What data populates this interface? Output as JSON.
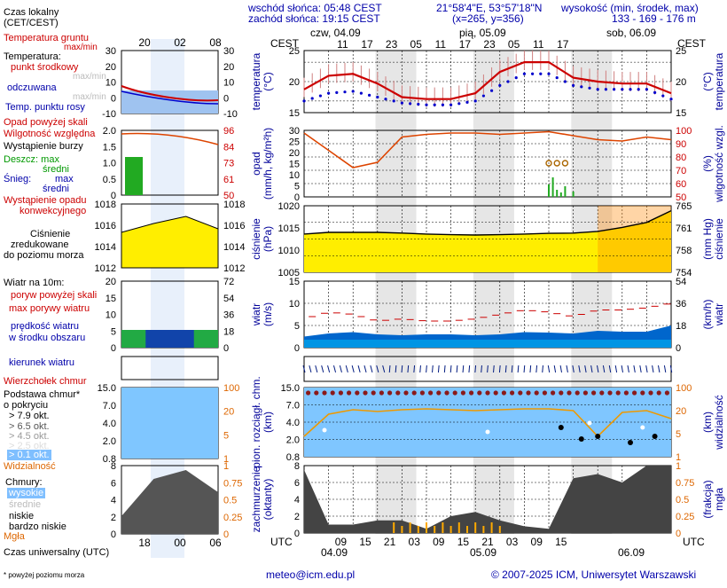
{
  "header": {
    "sunrise": "wschód słońca: 05:48 CEST",
    "sunset": "zachód słońca: 19:15 CEST",
    "coords": "21°58'4\"E, 53°57'18\"N",
    "grid": "(x=265, y=356)",
    "elev_title": "wysokość (min, środek, max)",
    "elev_values": "133 - 169 - 176 m"
  },
  "legend": {
    "time_local": "Czas lokalny",
    "time_local2": "(CET/CEST)",
    "ground_temp": "Temperatura gruntu",
    "ground_temp_sub": "max/min",
    "temperature": "Temperatura:",
    "temp_mid": "punkt środkowy",
    "temp_range": "max/min",
    "felt": "odczuwana",
    "felt_range": "max/min",
    "dew": "Temp. punktu rosy",
    "precip_above": "Opad powyżej skali",
    "humidity": "Wilgotność względna",
    "storm": "Wystąpienie burzy",
    "rain": "Deszcz: max",
    "rain_mid": "średni",
    "snow": "Śnieg:",
    "snow_max": "max",
    "snow_mid": "średni",
    "conv": "Wystąpienie opadu",
    "conv2": "konwekcyjnego",
    "pressure1": "Ciśnienie",
    "pressure2": "zredukowane",
    "pressure3": "do poziomu morza",
    "wind": "Wiatr na 10m:",
    "gust_above": "poryw powyżej skali",
    "gust_max": "max porywy wiatru",
    "wind_speed": "prędkość wiatru",
    "wind_area": "w środku obszaru",
    "wind_dir": "kierunek wiatru",
    "cloud_top": "Wierzchołek chmur",
    "cloud_base": "Podstawa chmur*",
    "cloud_base2": "o pokryciu",
    "okt1": "> 7.9 okt.",
    "okt2": "> 6.5 okt.",
    "okt3": "> 4.5 okt.",
    "okt4": "> 2.5 okt.",
    "okt5": "> 0.1 okt.",
    "visibility": "Widzialność",
    "clouds": "Chmury:",
    "high": "wysokie",
    "mid": "średnie",
    "low": "niskie",
    "very_low": "bardzo niskie",
    "fog": "Mgła",
    "utc": "Czas uniwersalny (UTC)",
    "footnote": "* powyżej poziomu morza"
  },
  "mini_axis": {
    "top_ticks": [
      "20",
      "02",
      "08"
    ],
    "bottom_ticks": [
      "18",
      "00",
      "06"
    ],
    "temp_left": [
      "30",
      "20",
      "10",
      "0",
      "-10"
    ],
    "temp_right": [
      "30",
      "20",
      "10",
      "0",
      "-10"
    ],
    "precip_left": [
      "2.0",
      "1.5",
      "1.0",
      "0.5",
      "0"
    ],
    "precip_right": [
      "96",
      "84",
      "73",
      "61",
      "50"
    ],
    "press_left": [
      "1018",
      "1016",
      "1014",
      "1012"
    ],
    "press_right": [
      "1018",
      "1016",
      "1014",
      "1012"
    ],
    "wind_left": [
      "20",
      "15",
      "10",
      "5",
      "0"
    ],
    "wind_right": [
      "72",
      "54",
      "36",
      "18",
      "0"
    ],
    "cloud_left": [
      "15.0",
      "7.0",
      "4.0",
      "2.0",
      "0.8"
    ],
    "cloud_right": [
      "100",
      "20",
      "5",
      "1"
    ],
    "cover_left": [
      "8",
      "6",
      "4",
      "2",
      "0"
    ],
    "cover_right": [
      "1",
      "0.75",
      "0.5",
      "0.25",
      "0"
    ]
  },
  "main_axis": {
    "cest": "CEST",
    "utc": "UTC",
    "days_top": [
      "czw, 04.09",
      "pią, 05.09",
      "sob, 06.09"
    ],
    "hours_top": [
      "11",
      "17",
      "23",
      "05",
      "11",
      "17",
      "23",
      "05",
      "11",
      "17"
    ],
    "hours_bottom": [
      "09",
      "15",
      "21",
      "03",
      "09",
      "15",
      "21",
      "03",
      "09",
      "15"
    ],
    "days_bottom": [
      "04.09",
      "05.09",
      "06.09"
    ],
    "temp_left": [
      "25",
      "20",
      "15"
    ],
    "temp_right": [
      "25",
      "20",
      "15"
    ],
    "precip_left": [
      "30",
      "25",
      "20",
      "15",
      "10",
      "5",
      "0"
    ],
    "precip_right": [
      "100",
      "90",
      "80",
      "70",
      "60",
      "50"
    ],
    "press_left": [
      "1020",
      "1015",
      "1010",
      "1005"
    ],
    "press_right": [
      "765",
      "761",
      "758",
      "754"
    ],
    "wind_left": [
      "15",
      "10",
      "5",
      "0"
    ],
    "wind_right": [
      "54",
      "36",
      "18",
      "0"
    ],
    "cloud_left": [
      "15.0",
      "7.0",
      "4.0",
      "2.0",
      "0.8"
    ],
    "cloud_right": [
      "100",
      "20",
      "5",
      "1"
    ],
    "cover_left": [
      "8",
      "6",
      "4",
      "2",
      "0"
    ],
    "cover_right": [
      "1",
      "0.75",
      "0.5",
      "0.25",
      "0"
    ]
  },
  "titles": {
    "temp_l1": "temperatura",
    "temp_l2": "(°C)",
    "temp_r1": "(°C)",
    "temp_r2": "temperatura",
    "precip_l1": "opad",
    "precip_l2": "(mm/h, kg/m²h)",
    "precip_r1": "(%)",
    "precip_r2": "wilgotność wzgl.",
    "press_l1": "ciśnienie",
    "press_l2": "(hPa)",
    "press_r1": "(mm Hg)",
    "press_r2": "ciśnienie",
    "wind_l1": "wiatr",
    "wind_l2": "(m/s)",
    "wind_r1": "(km/h)",
    "wind_r2": "wiatr",
    "cloud_l1": "pion. rozciągł. chm.",
    "cloud_l2": "(km)",
    "cloud_r1": "(km)",
    "cloud_r2": "widzialność",
    "cover_l1": "zachmurzenie",
    "cover_l2": "(oktanty)",
    "cover_r1": "(frakcja)",
    "cover_r2": "mgła"
  },
  "footer": {
    "email": "meteo@icm.edu.pl",
    "copyright": "© 2007-2025 ICM, Uniwersytet Warszawski"
  },
  "colors": {
    "temp": "#cc0000",
    "felt": "#0000cc",
    "dew": "#6666ff",
    "humidity": "#dd4400",
    "pressure_fill": "#ffee00",
    "wind_fill": "#0066cc",
    "gust": "#cc0000",
    "cloud_top": "#8b1a1a",
    "visibility": "#ee9900",
    "night_shade": "#e6e6e6",
    "sky": "#7fc6ff"
  },
  "chart_data": [
    {
      "type": "line",
      "title": "temperatura",
      "ylabel": "(°C)",
      "ylim": [
        12,
        28
      ],
      "x_hours_utc": [
        0,
        6,
        12,
        18,
        24,
        30,
        36,
        42,
        48,
        54,
        60,
        66,
        72,
        78,
        84,
        90
      ],
      "series": [
        {
          "name": "punkt środkowy",
          "values": [
            18,
            21.5,
            22,
            19.5,
            16,
            15.5,
            15.5,
            17,
            22.5,
            25,
            25,
            21,
            20,
            19.5,
            19.5,
            17
          ]
        },
        {
          "name": "odczuwana",
          "values": [
            15,
            17,
            17.5,
            16,
            14.5,
            14,
            14,
            15,
            19,
            22,
            22,
            19,
            18,
            18,
            18,
            15.5
          ]
        }
      ]
    },
    {
      "type": "line",
      "title": "wilgotność wzgl.",
      "ylabel": "(%)",
      "ylim": [
        50,
        100
      ],
      "x_hours_utc": [
        0,
        6,
        12,
        18,
        24,
        30,
        36,
        42,
        48,
        54,
        60,
        66,
        72,
        78,
        84,
        90
      ],
      "series": [
        {
          "name": "wilgotność względna",
          "values": [
            98,
            85,
            72,
            76,
            95,
            97,
            98,
            98,
            97,
            98,
            99,
            96,
            93,
            92,
            95,
            93
          ]
        }
      ]
    },
    {
      "type": "area",
      "title": "ciśnienie",
      "ylabel": "(hPa)",
      "ylim": [
        1005,
        1025
      ],
      "x_hours_utc": [
        0,
        6,
        12,
        18,
        24,
        30,
        36,
        42,
        48,
        54,
        60,
        66,
        72,
        78,
        84,
        90
      ],
      "values": [
        1016.5,
        1017,
        1017,
        1017,
        1016.8,
        1016.5,
        1016.3,
        1016.2,
        1016.3,
        1016.5,
        1016.7,
        1016.8,
        1017.3,
        1018.5,
        1020,
        1023.5
      ]
    },
    {
      "type": "area",
      "title": "wiatr",
      "ylabel": "(m/s)",
      "ylim": [
        0,
        15
      ],
      "x_hours_utc": [
        0,
        6,
        12,
        18,
        24,
        30,
        36,
        42,
        48,
        54,
        60,
        66,
        72,
        78,
        84,
        90
      ],
      "series": [
        {
          "name": "prędkość wiatru",
          "values": [
            2.5,
            3.2,
            3.5,
            3,
            2.8,
            3,
            3,
            2.8,
            3,
            3.5,
            3.4,
            3.2,
            3.8,
            3.6,
            3.6,
            5
          ]
        },
        {
          "name": "max porywy wiatru",
          "values": [
            6.5,
            8,
            7.5,
            6,
            6.5,
            6,
            6,
            6.5,
            7.5,
            8.5,
            8,
            7,
            8.5,
            8.5,
            9,
            10
          ]
        }
      ]
    },
    {
      "type": "area",
      "title": "zachmurzenie",
      "ylabel": "(oktanty)",
      "ylim": [
        0,
        8
      ],
      "x_hours_utc": [
        0,
        6,
        12,
        18,
        24,
        30,
        36,
        42,
        48,
        54,
        60,
        66,
        72,
        78,
        84,
        90
      ],
      "values": [
        7.5,
        1,
        1,
        1.5,
        1.5,
        0.5,
        2,
        2.5,
        1.5,
        0.8,
        0.5,
        6.5,
        7,
        6,
        8,
        8
      ]
    }
  ]
}
